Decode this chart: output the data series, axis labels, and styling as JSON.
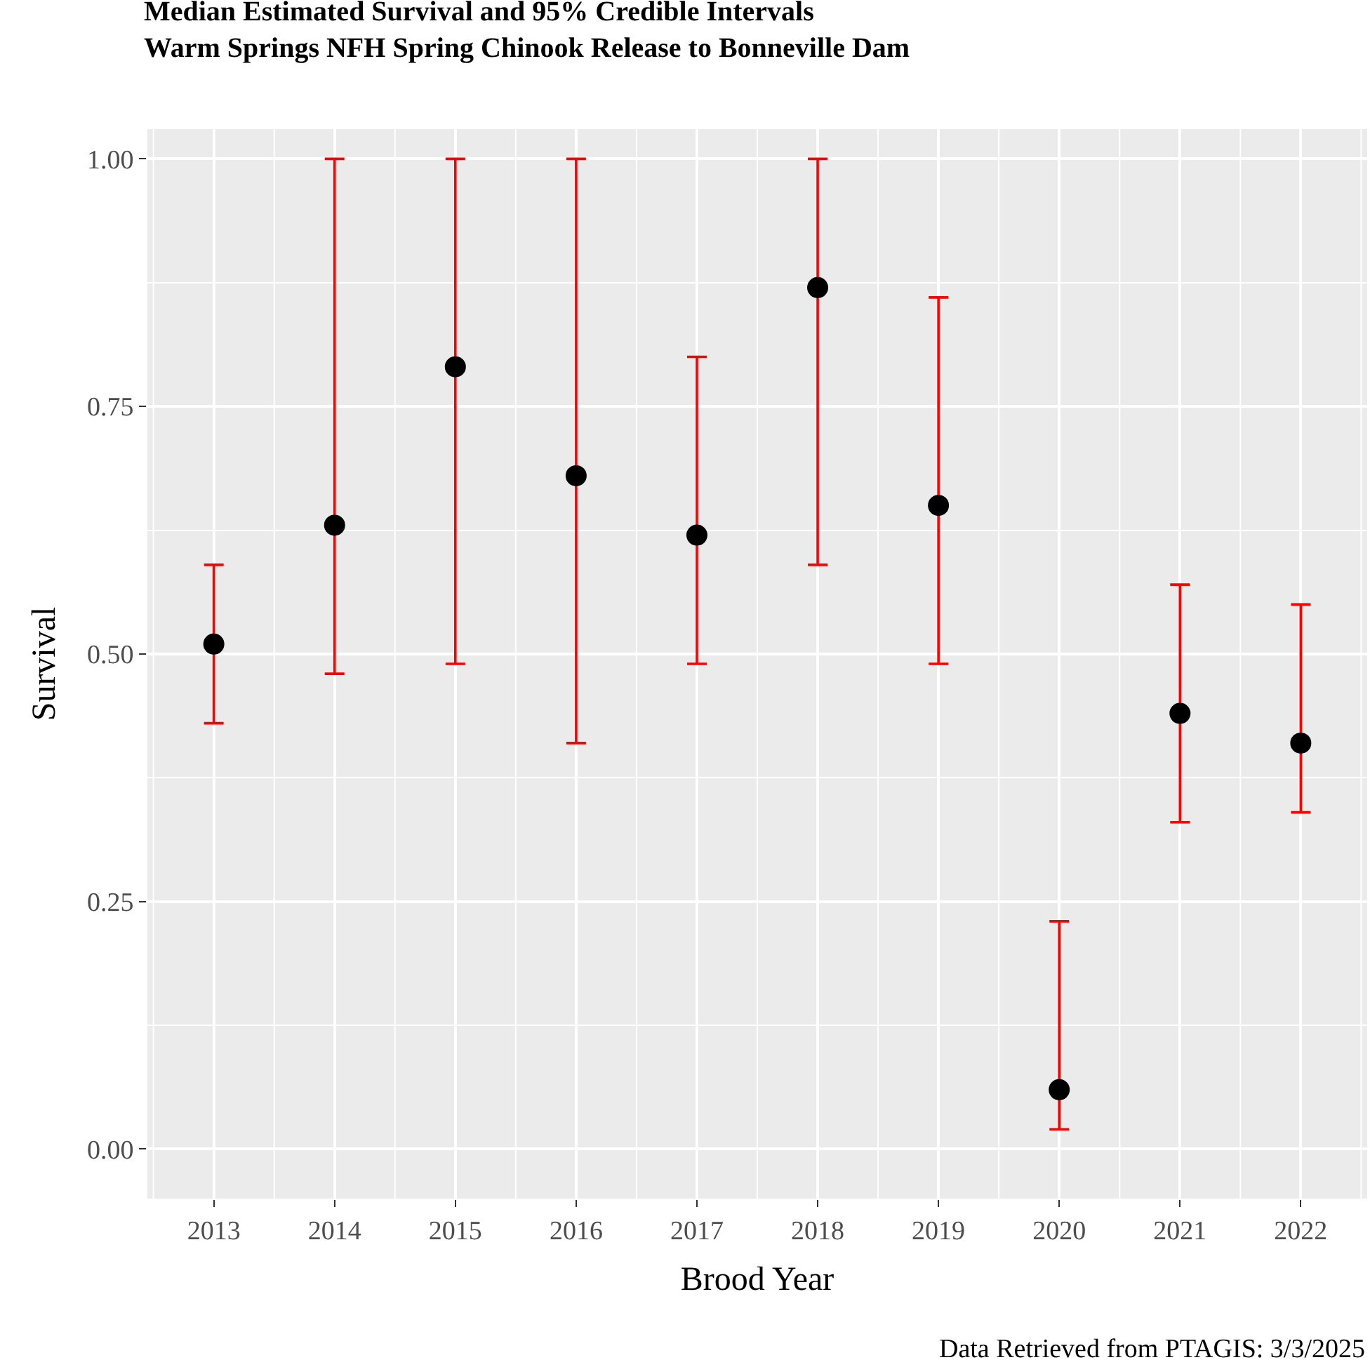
{
  "chart_data": {
    "type": "scatter",
    "title": "Median Estimated Survival and 95% Credible Intervals\nWarm Springs NFH Spring Chinook Release to Bonneville Dam",
    "xlabel": "Brood Year",
    "ylabel": "Survival",
    "categories": [
      "2013",
      "2014",
      "2015",
      "2016",
      "2017",
      "2018",
      "2019",
      "2020",
      "2021",
      "2022"
    ],
    "values": [
      0.51,
      0.63,
      0.79,
      0.68,
      0.62,
      0.87,
      0.65,
      0.06,
      0.44,
      0.41
    ],
    "errors": [
      [
        0.43,
        0.59
      ],
      [
        0.48,
        1.0
      ],
      [
        0.49,
        1.0
      ],
      [
        0.41,
        1.0
      ],
      [
        0.49,
        0.8
      ],
      [
        0.59,
        1.0
      ],
      [
        0.49,
        0.86
      ],
      [
        0.02,
        0.23
      ],
      [
        0.33,
        0.57
      ],
      [
        0.34,
        0.55
      ]
    ],
    "color": "#000000",
    "marker": "circle",
    "ylim": [
      -0.05,
      1.03
    ],
    "yticks": [
      {
        "value": 0,
        "label": "0.00"
      },
      {
        "value": 0.25,
        "label": "0.25"
      },
      {
        "value": 0.5,
        "label": "0.50"
      },
      {
        "value": 0.75,
        "label": "0.75"
      },
      {
        "value": 1,
        "label": "1.00"
      }
    ],
    "grid": true,
    "annotations": [
      "Data Retrieved from PTAGIS: 3/3/2025"
    ]
  }
}
